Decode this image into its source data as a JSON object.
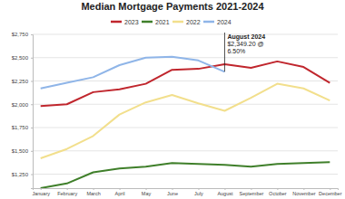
{
  "chart_data": {
    "type": "line",
    "title": "Median Mortgage Payments 2021-2024",
    "categories": [
      "January",
      "February",
      "March",
      "April",
      "May",
      "June",
      "July",
      "August",
      "September",
      "October",
      "November",
      "December"
    ],
    "series": [
      {
        "name": "2023",
        "color": "#c0262d",
        "values": [
          1980,
          2000,
          2130,
          2160,
          2220,
          2370,
          2380,
          2430,
          2390,
          2460,
          2400,
          2230
        ]
      },
      {
        "name": "2021",
        "color": "#3f7f2a",
        "values": [
          1100,
          1150,
          1270,
          1310,
          1330,
          1370,
          1360,
          1350,
          1330,
          1360,
          1370,
          1380
        ]
      },
      {
        "name": "2022",
        "color": "#f2df8c",
        "values": [
          1420,
          1520,
          1660,
          1890,
          2020,
          2100,
          2010,
          1930,
          2070,
          2220,
          2170,
          2040
        ]
      },
      {
        "name": "2024",
        "color": "#8fb5e8",
        "values": [
          2170,
          2230,
          2290,
          2420,
          2500,
          2510,
          2470,
          2349.2,
          null,
          null,
          null,
          null
        ]
      }
    ],
    "ylim": [
      1100,
      2750
    ],
    "yticks": [
      {
        "value": 1250,
        "label": "$1,250"
      },
      {
        "value": 1500,
        "label": "$1,500"
      },
      {
        "value": 1750,
        "label": "$1,750"
      },
      {
        "value": 2000,
        "label": "$2,000"
      },
      {
        "value": 2250,
        "label": "$2,250"
      },
      {
        "value": 2500,
        "label": "$2,500"
      },
      {
        "value": 2750,
        "label": "$2,750"
      }
    ],
    "grid": true,
    "legend": "top",
    "annotations": [
      {
        "text": [
          "August 2024",
          "$2,349.20 @",
          "6.50%"
        ],
        "x": "August",
        "y": 2349.2
      }
    ]
  }
}
